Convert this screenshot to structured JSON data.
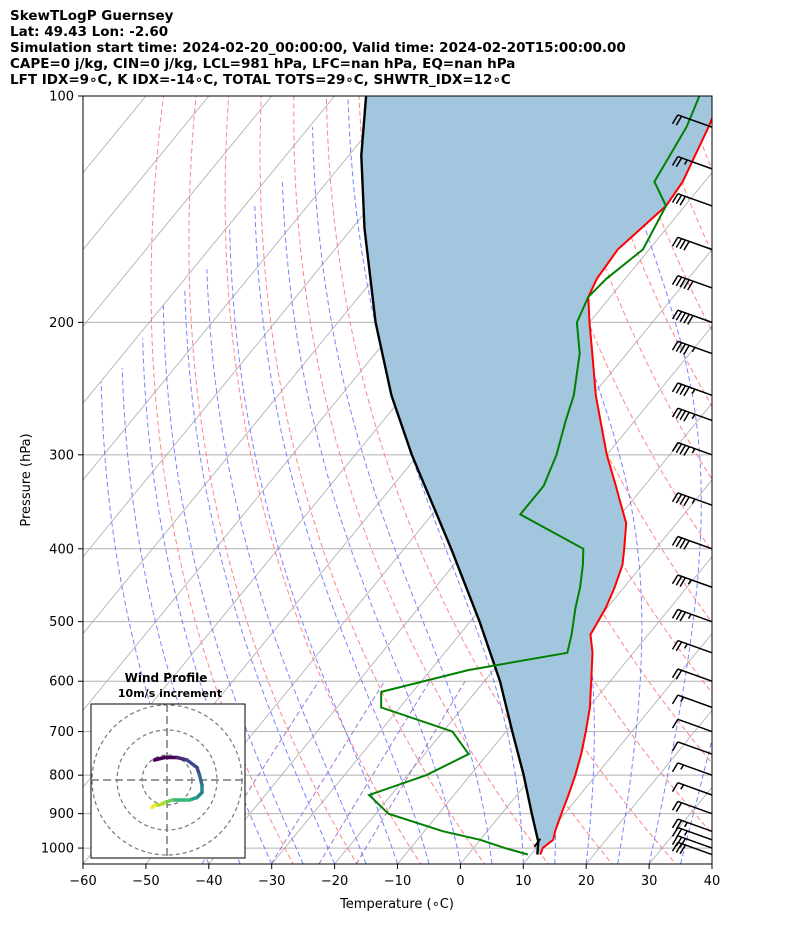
{
  "header": {
    "line1": "SkewTLogP Guernsey",
    "line2": "Lat: 49.43   Lon: -2.60",
    "line3": "Simulation start time: 2024-02-20_00:00:00, Valid time: 2024-02-20T15:00:00.00",
    "line4": "CAPE=0 j/kg, CIN=0 j/kg, LCL=981 hPa, LFC=nan hPa, EQ=nan hPa",
    "line5": "LFT IDX=9∘C, K IDX=-14∘C, TOTAL TOTS=29∘C, SHWTR_IDX=12∘C"
  },
  "chart_data": {
    "type": "line",
    "subtype": "skew-t log-p",
    "xlabel": "Temperature (∘C)",
    "ylabel": "Pressure (hPa)",
    "xlim": [
      -60,
      40
    ],
    "ylim": [
      1050,
      100
    ],
    "xticks": [
      -60,
      -50,
      -40,
      -30,
      -20,
      -10,
      0,
      10,
      20,
      30,
      40
    ],
    "xtick_labels": [
      "−60",
      "−50",
      "−40",
      "−30",
      "−20",
      "−10",
      "0",
      "10",
      "20",
      "30",
      "40"
    ],
    "yticks": [
      1000,
      900,
      800,
      700,
      600,
      500,
      400,
      300,
      200,
      100
    ],
    "ytick_labels": [
      "1000",
      "900",
      "800",
      "700",
      "600",
      "500",
      "400",
      "300",
      "200",
      "100"
    ],
    "colors": {
      "temperature": "#ff0000",
      "dewpoint": "#008000",
      "parcel": "#000000",
      "shading": "#a3c6df",
      "isotherm": "#aaaaaa",
      "dry_adiabat": "#ff7777",
      "moist_adiabat": "#6677ff",
      "mixing_ratio": "#9966cc",
      "wind_barb": "#000000"
    },
    "series": [
      {
        "name": "temperature",
        "pressure": [
          1020,
          1000,
          975,
          950,
          900,
          850,
          800,
          750,
          700,
          650,
          600,
          550,
          520,
          480,
          450,
          420,
          400,
          370,
          345,
          330,
          300,
          270,
          250,
          220,
          200,
          185,
          175,
          160,
          140,
          130,
          110,
          100
        ],
        "values": [
          11.5,
          11,
          11.6,
          10.8,
          9.5,
          8.2,
          6.7,
          4.9,
          2.7,
          0.2,
          -3,
          -6.5,
          -9.2,
          -10.2,
          -11.5,
          -13.2,
          -15,
          -18,
          -22,
          -24.5,
          -30,
          -35.5,
          -39.5,
          -45.5,
          -50,
          -53.5,
          -54.5,
          -55,
          -53,
          -53.5,
          -56.5,
          -58.5
        ]
      },
      {
        "name": "dewpoint",
        "pressure": [
          1020,
          1000,
          975,
          950,
          900,
          850,
          800,
          750,
          700,
          650,
          620,
          580,
          550,
          520,
          480,
          450,
          420,
          400,
          360,
          330,
          300,
          270,
          250,
          220,
          200,
          185,
          175,
          160,
          140,
          130,
          110,
          100
        ],
        "values": [
          9.5,
          5,
          0,
          -7,
          -18,
          -23.5,
          -17,
          -13,
          -18.5,
          -33,
          -35,
          -24,
          -10.5,
          -12.2,
          -15,
          -17,
          -19.5,
          -21.5,
          -36,
          -36,
          -38,
          -41,
          -43,
          -47.5,
          -52,
          -53.5,
          -53,
          -51,
          -53,
          -58,
          -60,
          -62
        ]
      },
      {
        "name": "parcel",
        "pressure": [
          1020,
          981,
          900,
          800,
          700,
          600,
          500,
          400,
          300,
          250,
          200,
          150,
          120,
          100
        ],
        "values": [
          11,
          9.5,
          4.8,
          -1.5,
          -9,
          -17.5,
          -28.5,
          -42.5,
          -61,
          -72,
          -84,
          -98,
          -108,
          -115
        ]
      }
    ],
    "wind_barbs": {
      "pressure": [
        1020,
        1000,
        975,
        950,
        900,
        850,
        800,
        750,
        700,
        650,
        600,
        550,
        500,
        450,
        400,
        350,
        300,
        270,
        250,
        220,
        200,
        180,
        160,
        140,
        125,
        110
      ],
      "speed_kt": [
        30,
        30,
        25,
        25,
        20,
        15,
        15,
        10,
        10,
        15,
        20,
        25,
        35,
        35,
        40,
        45,
        45,
        45,
        45,
        45,
        50,
        50,
        40,
        30,
        25,
        20
      ]
    },
    "hodograph": {
      "title": "Wind Profile",
      "subtitle": "10m/s increment",
      "rings": [
        10,
        20,
        30
      ],
      "u": [
        -5,
        -1,
        4,
        8,
        12,
        13,
        14,
        14,
        12,
        9,
        5,
        2,
        -1,
        -3,
        -5,
        -6
      ],
      "v": [
        8,
        9,
        9,
        8,
        5,
        2,
        -2,
        -5,
        -7,
        -8,
        -8,
        -8,
        -9,
        -10,
        -10,
        -11
      ]
    }
  }
}
